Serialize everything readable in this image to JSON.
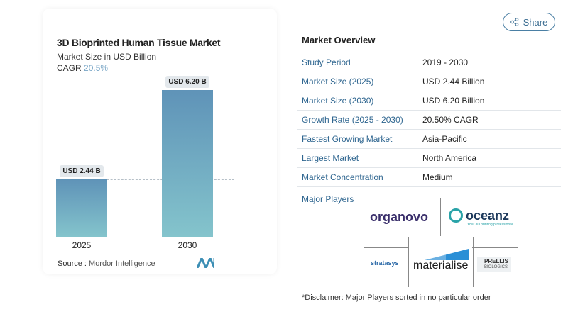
{
  "share_label": "Share",
  "chart": {
    "title": "3D Bioprinted Human Tissue Market",
    "subtitle": "Market Size in USD Billion",
    "cagr_label": "CAGR",
    "cagr_value": "20.5%",
    "source_label": "Source :",
    "source": "Mordor Intelligence"
  },
  "chart_data": {
    "type": "bar",
    "title": "3D Bioprinted Human Tissue Market",
    "subtitle": "Market Size in USD Billion",
    "categories": [
      "2025",
      "2030"
    ],
    "values": [
      2.44,
      6.2
    ],
    "data_labels": [
      "USD 2.44 B",
      "USD 6.20 B"
    ],
    "colors": [
      "#5f93b8",
      "#84c4cc"
    ]
  },
  "overview": {
    "title": "Market Overview",
    "rows": [
      {
        "k": "Study Period",
        "v": "2019 - 2030"
      },
      {
        "k": "Market Size (2025)",
        "v": "USD 2.44 Billion"
      },
      {
        "k": "Market Size (2030)",
        "v": "USD 6.20 Billion"
      },
      {
        "k": "Growth Rate (2025 - 2030)",
        "v": "20.50% CAGR"
      },
      {
        "k": "Fastest Growing Market",
        "v": "Asia-Pacific"
      },
      {
        "k": "Largest Market",
        "v": "North America"
      },
      {
        "k": "Market Concentration",
        "v": "Medium"
      }
    ]
  },
  "players": {
    "title": "Major Players",
    "logos": [
      "organovo",
      "oceanz",
      "Your 3D printing professional",
      "stratasys",
      "materialise",
      "PRELLIS",
      "BIOLOGICS"
    ]
  },
  "disclaimer": "*Disclaimer: Major Players sorted in no particular order"
}
